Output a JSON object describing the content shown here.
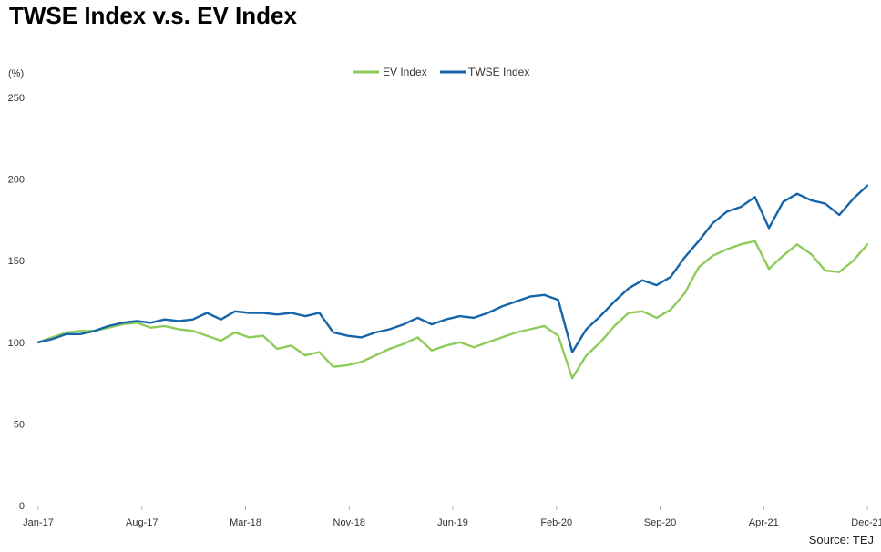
{
  "title": "TWSE Index v.s. EV Index",
  "source": "Source: TEJ",
  "colors": {
    "ev": "#8ecb5a",
    "twse": "#1565a8",
    "axis": "#b0b0b0"
  },
  "chart_data": {
    "type": "line",
    "title": "TWSE Index v.s. EV Index",
    "ylabel": "(%)",
    "ylim": [
      0,
      250
    ],
    "yticks": [
      0,
      50,
      100,
      150,
      200,
      250
    ],
    "xlim": [
      "2017-01",
      "2021-12"
    ],
    "xticks": [
      "Jan-17",
      "Aug-17",
      "Mar-18",
      "Nov-18",
      "Jun-19",
      "Feb-20",
      "Sep-20",
      "Apr-21",
      "Dec-21"
    ],
    "legend_position": "top-center",
    "grid": false,
    "series": [
      {
        "name": "EV Index",
        "color": "#8ecb5a",
        "points": [
          [
            "2017-01",
            100
          ],
          [
            "2017-02",
            103
          ],
          [
            "2017-03",
            106
          ],
          [
            "2017-04",
            107
          ],
          [
            "2017-05",
            107
          ],
          [
            "2017-06",
            109
          ],
          [
            "2017-07",
            111
          ],
          [
            "2017-08",
            112
          ],
          [
            "2017-09",
            109
          ],
          [
            "2017-10",
            110
          ],
          [
            "2017-11",
            108
          ],
          [
            "2017-12",
            107
          ],
          [
            "2018-01",
            104
          ],
          [
            "2018-02",
            101
          ],
          [
            "2018-03",
            106
          ],
          [
            "2018-04",
            103
          ],
          [
            "2018-05",
            104
          ],
          [
            "2018-06",
            96
          ],
          [
            "2018-07",
            98
          ],
          [
            "2018-08",
            92
          ],
          [
            "2018-09",
            94
          ],
          [
            "2018-10",
            85
          ],
          [
            "2018-11",
            86
          ],
          [
            "2018-12",
            88
          ],
          [
            "2019-01",
            92
          ],
          [
            "2019-02",
            96
          ],
          [
            "2019-03",
            99
          ],
          [
            "2019-04",
            103
          ],
          [
            "2019-05",
            95
          ],
          [
            "2019-06",
            98
          ],
          [
            "2019-07",
            100
          ],
          [
            "2019-08",
            97
          ],
          [
            "2019-09",
            100
          ],
          [
            "2019-10",
            103
          ],
          [
            "2019-11",
            106
          ],
          [
            "2019-12",
            108
          ],
          [
            "2020-01",
            110
          ],
          [
            "2020-02",
            104
          ],
          [
            "2020-03",
            78
          ],
          [
            "2020-04",
            92
          ],
          [
            "2020-05",
            100
          ],
          [
            "2020-06",
            110
          ],
          [
            "2020-07",
            118
          ],
          [
            "2020-08",
            119
          ],
          [
            "2020-09",
            115
          ],
          [
            "2020-10",
            120
          ],
          [
            "2020-11",
            130
          ],
          [
            "2020-12",
            146
          ],
          [
            "2021-01",
            153
          ],
          [
            "2021-02",
            157
          ],
          [
            "2021-03",
            160
          ],
          [
            "2021-04",
            162
          ],
          [
            "2021-05",
            145
          ],
          [
            "2021-06",
            153
          ],
          [
            "2021-07",
            160
          ],
          [
            "2021-08",
            154
          ],
          [
            "2021-09",
            144
          ],
          [
            "2021-10",
            143
          ],
          [
            "2021-11",
            150
          ],
          [
            "2021-12",
            160
          ]
        ]
      },
      {
        "name": "TWSE Index",
        "color": "#1565a8",
        "points": [
          [
            "2017-01",
            100
          ],
          [
            "2017-02",
            102
          ],
          [
            "2017-03",
            105
          ],
          [
            "2017-04",
            105
          ],
          [
            "2017-05",
            107
          ],
          [
            "2017-06",
            110
          ],
          [
            "2017-07",
            112
          ],
          [
            "2017-08",
            113
          ],
          [
            "2017-09",
            112
          ],
          [
            "2017-10",
            114
          ],
          [
            "2017-11",
            113
          ],
          [
            "2017-12",
            114
          ],
          [
            "2018-01",
            118
          ],
          [
            "2018-02",
            114
          ],
          [
            "2018-03",
            119
          ],
          [
            "2018-04",
            118
          ],
          [
            "2018-05",
            118
          ],
          [
            "2018-06",
            117
          ],
          [
            "2018-07",
            118
          ],
          [
            "2018-08",
            116
          ],
          [
            "2018-09",
            118
          ],
          [
            "2018-10",
            106
          ],
          [
            "2018-11",
            104
          ],
          [
            "2018-12",
            103
          ],
          [
            "2019-01",
            106
          ],
          [
            "2019-02",
            108
          ],
          [
            "2019-03",
            111
          ],
          [
            "2019-04",
            115
          ],
          [
            "2019-05",
            111
          ],
          [
            "2019-06",
            114
          ],
          [
            "2019-07",
            116
          ],
          [
            "2019-08",
            115
          ],
          [
            "2019-09",
            118
          ],
          [
            "2019-10",
            122
          ],
          [
            "2019-11",
            125
          ],
          [
            "2019-12",
            128
          ],
          [
            "2020-01",
            129
          ],
          [
            "2020-02",
            126
          ],
          [
            "2020-03",
            94
          ],
          [
            "2020-04",
            108
          ],
          [
            "2020-05",
            116
          ],
          [
            "2020-06",
            125
          ],
          [
            "2020-07",
            133
          ],
          [
            "2020-08",
            138
          ],
          [
            "2020-09",
            135
          ],
          [
            "2020-10",
            140
          ],
          [
            "2020-11",
            152
          ],
          [
            "2020-12",
            162
          ],
          [
            "2021-01",
            173
          ],
          [
            "2021-02",
            180
          ],
          [
            "2021-03",
            183
          ],
          [
            "2021-04",
            189
          ],
          [
            "2021-05",
            170
          ],
          [
            "2021-06",
            186
          ],
          [
            "2021-07",
            191
          ],
          [
            "2021-08",
            187
          ],
          [
            "2021-09",
            185
          ],
          [
            "2021-10",
            178
          ],
          [
            "2021-11",
            188
          ],
          [
            "2021-12",
            196
          ]
        ]
      }
    ]
  }
}
